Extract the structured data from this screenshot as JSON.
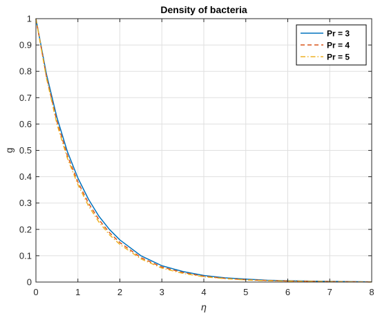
{
  "chart_data": {
    "type": "line",
    "title": "Density of bacteria",
    "xlabel": "η",
    "ylabel": "g",
    "xlim": [
      0,
      8
    ],
    "ylim": [
      0,
      1
    ],
    "xticks": [
      0,
      1,
      2,
      3,
      4,
      5,
      6,
      7,
      8
    ],
    "yticks": [
      0,
      0.1,
      0.2,
      0.3,
      0.4,
      0.5,
      0.6,
      0.7,
      0.8,
      0.9,
      1
    ],
    "xtick_labels": [
      "0",
      "1",
      "2",
      "3",
      "4",
      "5",
      "6",
      "7",
      "8"
    ],
    "ytick_labels": [
      "0",
      "0.1",
      "0.2",
      "0.3",
      "0.4",
      "0.5",
      "0.6",
      "0.7",
      "0.8",
      "0.9",
      "1"
    ],
    "grid": true,
    "legend_position": "top-right",
    "x": [
      0,
      0.25,
      0.5,
      0.75,
      1,
      1.25,
      1.5,
      1.75,
      2,
      2.5,
      3,
      3.5,
      4,
      4.5,
      5,
      5.5,
      6,
      6.5,
      7,
      7.5,
      8
    ],
    "series": [
      {
        "name": "Pr = 3",
        "color": "#0072BD",
        "dash": "solid",
        "values": [
          1.0,
          0.79,
          0.625,
          0.495,
          0.395,
          0.315,
          0.25,
          0.2,
          0.16,
          0.1,
          0.062,
          0.04,
          0.025,
          0.016,
          0.011,
          0.007,
          0.005,
          0.0035,
          0.0025,
          0.0015,
          0.0005
        ]
      },
      {
        "name": "Pr = 4",
        "color": "#D95319",
        "dash": "dashed",
        "values": [
          1.0,
          0.78,
          0.61,
          0.48,
          0.38,
          0.3,
          0.237,
          0.188,
          0.15,
          0.093,
          0.057,
          0.036,
          0.022,
          0.014,
          0.009,
          0.006,
          0.004,
          0.003,
          0.002,
          0.0012,
          0.0004
        ]
      },
      {
        "name": "Pr = 5",
        "color": "#EDB120",
        "dash": "dashdot",
        "values": [
          1.0,
          0.775,
          0.6,
          0.47,
          0.37,
          0.29,
          0.228,
          0.18,
          0.143,
          0.088,
          0.053,
          0.033,
          0.02,
          0.013,
          0.008,
          0.005,
          0.0035,
          0.0025,
          0.0017,
          0.001,
          0.0003
        ]
      }
    ]
  }
}
